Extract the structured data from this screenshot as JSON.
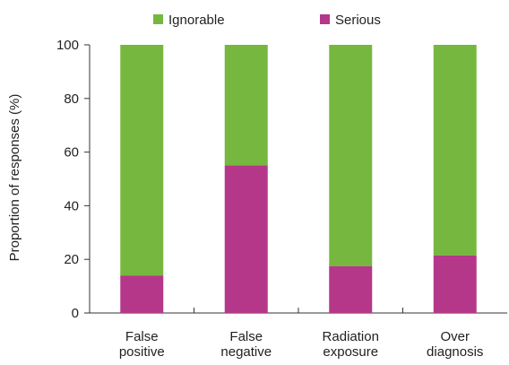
{
  "chart_data": {
    "type": "bar",
    "stacked": true,
    "categories": [
      [
        "False",
        "positive"
      ],
      [
        "False",
        "negative"
      ],
      [
        "Radiation",
        "exposure"
      ],
      [
        "Over",
        "diagnosis"
      ]
    ],
    "series": [
      {
        "name": "Serious",
        "color": "#b5378a",
        "values": [
          14,
          55,
          17.5,
          21.5
        ]
      },
      {
        "name": "Ignorable",
        "color": "#76b83f",
        "values": [
          86,
          45,
          82.5,
          78.5
        ]
      }
    ],
    "legend_order": [
      "Ignorable",
      "Serious"
    ],
    "legend_position": "top",
    "xlabel": "",
    "ylabel": "Proportion of responses (%)",
    "ylim": [
      0,
      100
    ],
    "yticks": [
      0,
      20,
      40,
      60,
      80,
      100
    ],
    "grid": false
  }
}
